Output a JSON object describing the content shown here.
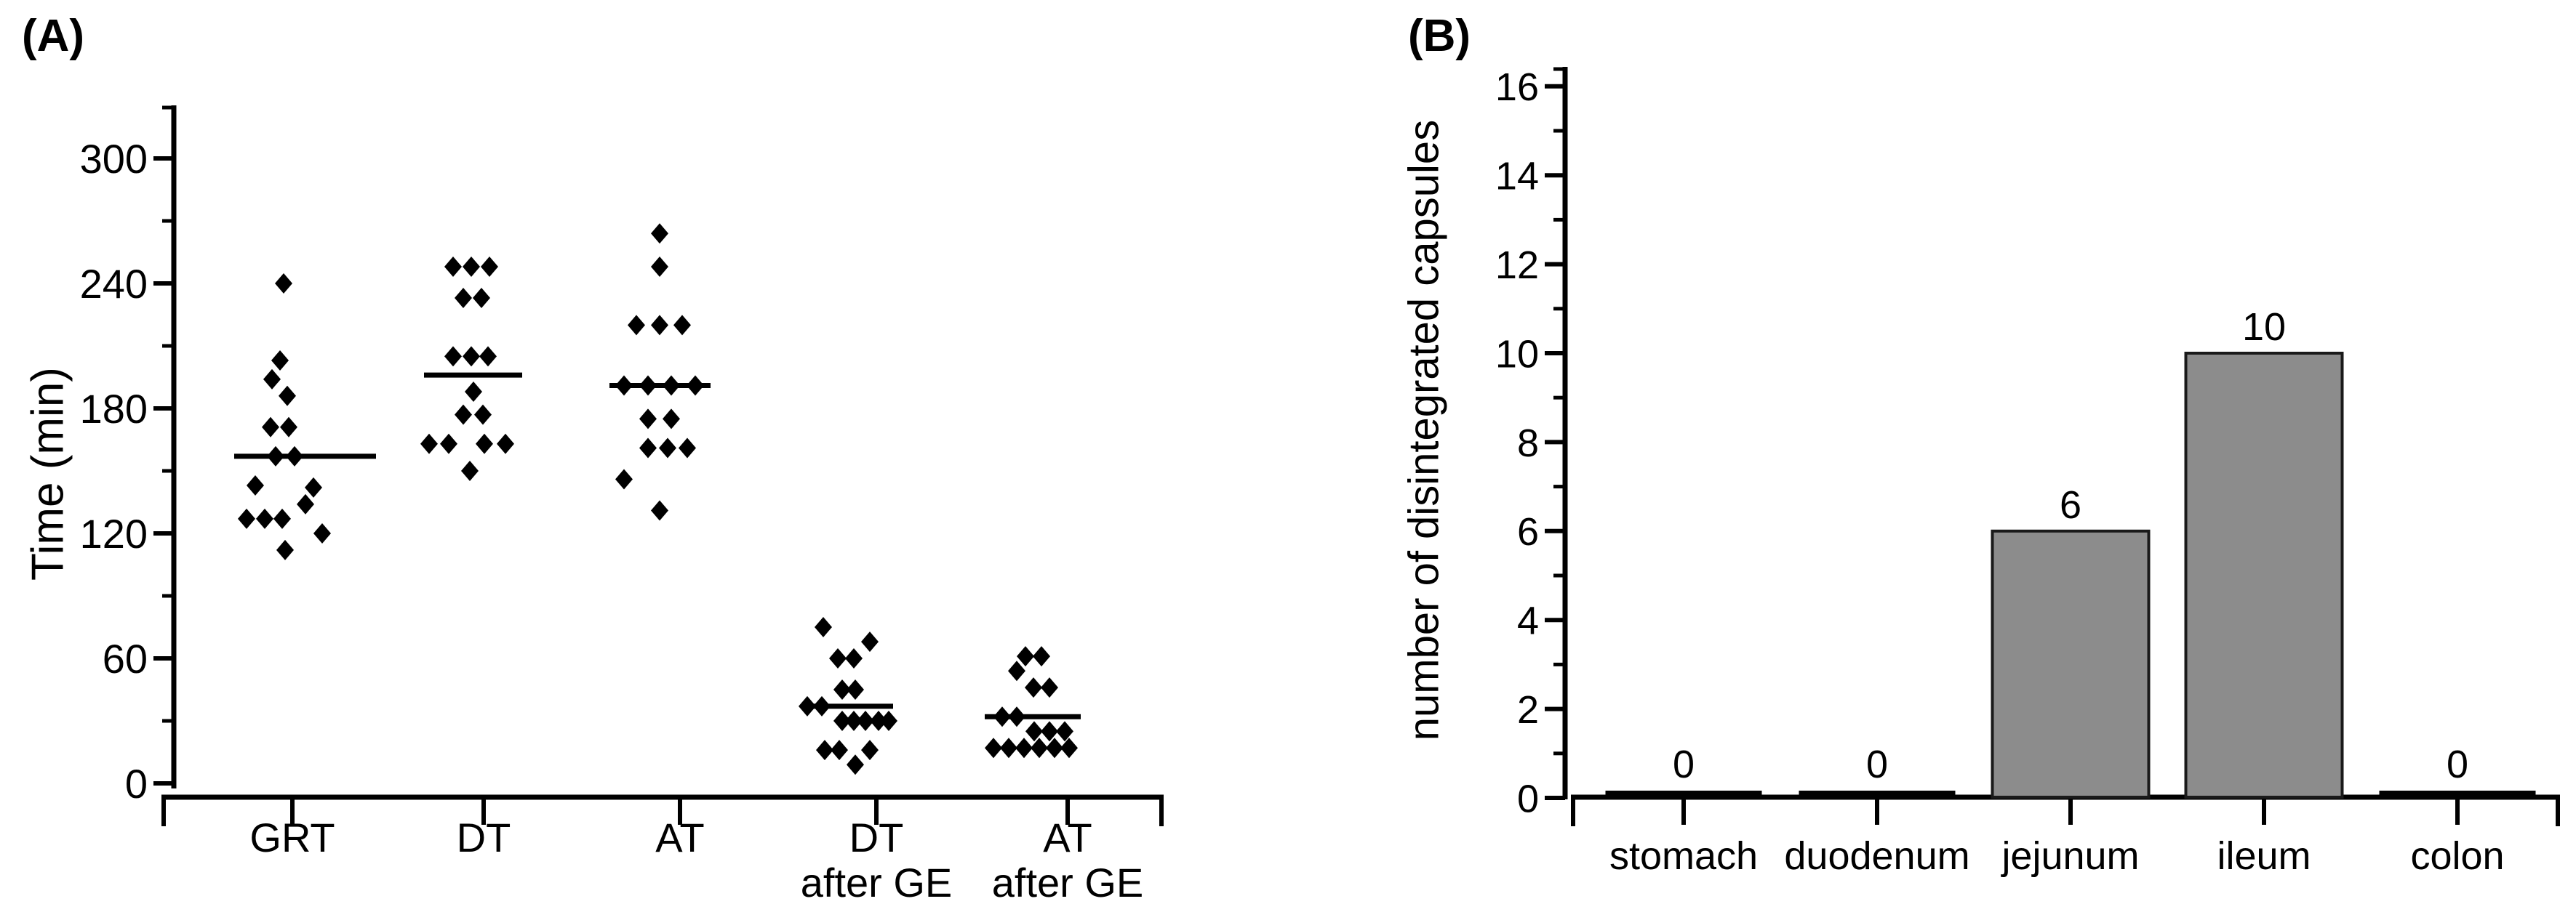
{
  "figure": {
    "background": "#ffffff"
  },
  "chart_data": [
    {
      "type": "scatter",
      "panel": "A",
      "title": "(A)",
      "ylabel": "Time (min)",
      "ylim": [
        0,
        325
      ],
      "yticks": [
        0,
        60,
        120,
        180,
        240,
        300
      ],
      "y_minor_step": 30,
      "grid": false,
      "marker": "diamond",
      "marker_color": "#000000",
      "jitter_unit": "px",
      "categories": [
        "GRT",
        "DT",
        "AT",
        "DT after GE",
        "AT after GE"
      ],
      "groups": [
        {
          "label_lines": [
            "GRT"
          ],
          "mean": 157,
          "mean_line_dx": [
            -80,
            115
          ],
          "points": [
            [
              -12,
              240
            ],
            [
              -17,
              203
            ],
            [
              -28,
              194
            ],
            [
              -7,
              186
            ],
            [
              -30,
              171
            ],
            [
              -5,
              171
            ],
            [
              -23,
              157
            ],
            [
              3,
              157
            ],
            [
              -51,
              143
            ],
            [
              29,
              142
            ],
            [
              18,
              134
            ],
            [
              -63,
              127
            ],
            [
              -38,
              127
            ],
            [
              -14,
              127
            ],
            [
              41,
              120
            ],
            [
              -10,
              112
            ]
          ]
        },
        {
          "label_lines": [
            "DT"
          ],
          "mean": 196,
          "mean_line_dx": [
            -82,
            53
          ],
          "points": [
            [
              -42,
              248
            ],
            [
              -17,
              248
            ],
            [
              8,
              248
            ],
            [
              -28,
              233
            ],
            [
              -3,
              233
            ],
            [
              -42,
              205
            ],
            [
              -17,
              205
            ],
            [
              6,
              205
            ],
            [
              -14,
              188
            ],
            [
              -28,
              177
            ],
            [
              -1,
              177
            ],
            [
              -75,
              163
            ],
            [
              -48,
              163
            ],
            [
              1,
              163
            ],
            [
              30,
              163
            ],
            [
              -19,
              150
            ]
          ]
        },
        {
          "label_lines": [
            "AT"
          ],
          "mean": 191,
          "mean_line_dx": [
            -97,
            42
          ],
          "points": [
            [
              -28,
              264
            ],
            [
              -28,
              248
            ],
            [
              -60,
              220
            ],
            [
              -28,
              220
            ],
            [
              3,
              220
            ],
            [
              -77,
              191
            ],
            [
              -44,
              191
            ],
            [
              -12,
              191
            ],
            [
              21,
              191
            ],
            [
              -44,
              175
            ],
            [
              -12,
              175
            ],
            [
              -44,
              161
            ],
            [
              -17,
              161
            ],
            [
              10,
              161
            ],
            [
              -77,
              146
            ],
            [
              -28,
              131
            ]
          ]
        },
        {
          "label_lines": [
            "DT",
            "after GE"
          ],
          "mean": 37,
          "mean_line_dx": [
            -101,
            23
          ],
          "points": [
            [
              -73,
              75
            ],
            [
              -9,
              68
            ],
            [
              -53,
              60
            ],
            [
              -31,
              60
            ],
            [
              -47,
              45
            ],
            [
              -29,
              45
            ],
            [
              -95,
              37
            ],
            [
              -75,
              37
            ],
            [
              -47,
              30
            ],
            [
              -31,
              30
            ],
            [
              -15,
              30
            ],
            [
              3,
              30
            ],
            [
              17,
              30
            ],
            [
              -71,
              16
            ],
            [
              -51,
              16
            ],
            [
              -9,
              16
            ],
            [
              -29,
              9
            ]
          ]
        },
        {
          "label_lines": [
            "AT",
            "after GE"
          ],
          "mean": 32,
          "mean_line_dx": [
            -114,
            18
          ],
          "points": [
            [
              -58,
              61
            ],
            [
              -36,
              61
            ],
            [
              -70,
              54
            ],
            [
              -47,
              46
            ],
            [
              -25,
              46
            ],
            [
              -90,
              32
            ],
            [
              -70,
              32
            ],
            [
              -46,
              25
            ],
            [
              -25,
              25
            ],
            [
              -4,
              25
            ],
            [
              -102,
              17
            ],
            [
              -81,
              17
            ],
            [
              -60,
              17
            ],
            [
              -39,
              17
            ],
            [
              -18,
              17
            ],
            [
              2,
              17
            ]
          ]
        }
      ]
    },
    {
      "type": "bar",
      "panel": "B",
      "title": "(B)",
      "ylabel": "number of disintegrated capsules",
      "ylim": [
        0,
        16
      ],
      "yticks": [
        0,
        2,
        4,
        6,
        8,
        10,
        12,
        14,
        16
      ],
      "y_minor_step": 1,
      "grid": false,
      "categories": [
        "stomach",
        "duodenum",
        "jejunum",
        "ileum",
        "colon"
      ],
      "values": [
        0,
        0,
        6,
        10,
        0
      ],
      "bar_labels": [
        "0",
        "0",
        "6",
        "10",
        "0"
      ],
      "bar_color": "#8c8c8c",
      "bar_edge_color": "#1a1a1a"
    }
  ]
}
